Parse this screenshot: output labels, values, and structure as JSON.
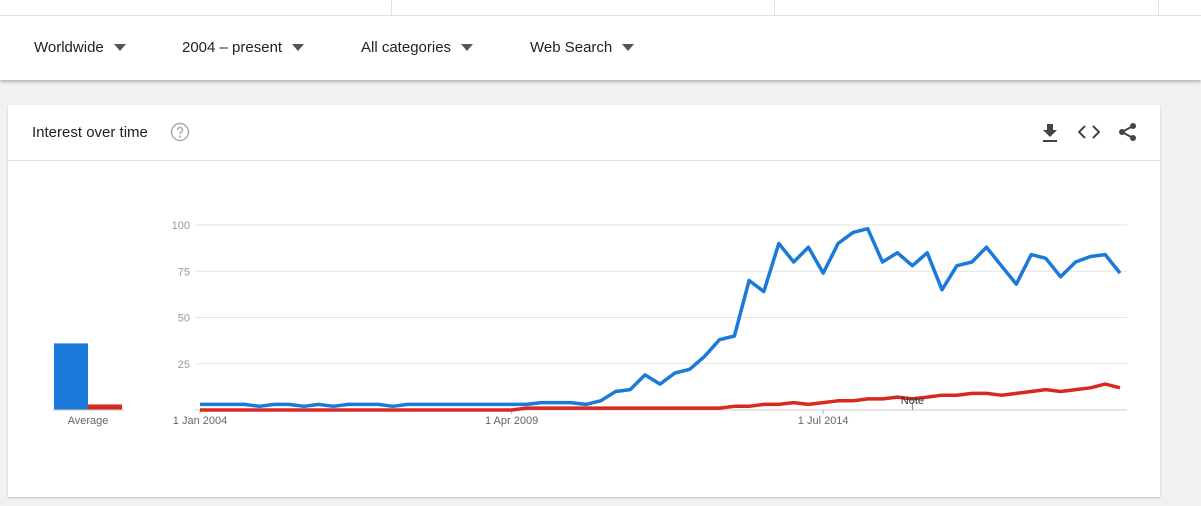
{
  "filters": [
    "Worldwide",
    "2004 – present",
    "All categories",
    "Web Search"
  ],
  "card": {
    "title": "Interest over time"
  },
  "chart_data": [
    {
      "type": "line",
      "x": [
        "2004-01-01",
        "2004-04-01",
        "2004-07-01",
        "2004-10-01",
        "2005-01-01",
        "2005-04-01",
        "2005-07-01",
        "2005-10-01",
        "2006-01-01",
        "2006-04-01",
        "2006-07-01",
        "2006-10-01",
        "2007-01-01",
        "2007-04-01",
        "2007-07-01",
        "2007-10-01",
        "2008-01-01",
        "2008-04-01",
        "2008-07-01",
        "2008-10-01",
        "2009-01-01",
        "2009-04-01",
        "2009-07-01",
        "2009-10-01",
        "2010-01-01",
        "2010-04-01",
        "2010-07-01",
        "2010-10-01",
        "2011-01-01",
        "2011-04-01",
        "2011-07-01",
        "2011-10-01",
        "2012-01-01",
        "2012-04-01",
        "2012-07-01",
        "2012-10-01",
        "2013-01-01",
        "2013-04-01",
        "2013-07-01",
        "2013-10-01",
        "2014-01-01",
        "2014-04-01",
        "2014-07-01",
        "2014-10-01",
        "2015-01-01",
        "2015-04-01",
        "2015-07-01",
        "2015-10-01",
        "2016-01-01",
        "2016-04-01",
        "2016-07-01",
        "2016-10-01",
        "2017-01-01",
        "2017-04-01",
        "2017-07-01",
        "2017-10-01",
        "2018-01-01",
        "2018-04-01",
        "2018-07-01",
        "2018-10-01",
        "2019-01-01",
        "2019-04-01",
        "2019-07-01"
      ],
      "series": [
        {
          "color": "#1a7ad9",
          "values": [
            3,
            3,
            3,
            3,
            2,
            3,
            3,
            2,
            3,
            2,
            3,
            3,
            3,
            2,
            3,
            3,
            3,
            3,
            3,
            3,
            3,
            3,
            3,
            4,
            4,
            4,
            3,
            5,
            10,
            11,
            19,
            14,
            20,
            22,
            29,
            38,
            40,
            70,
            64,
            90,
            80,
            88,
            74,
            90,
            96,
            98,
            80,
            85,
            78,
            85,
            65,
            78,
            80,
            88,
            78,
            68,
            84,
            82,
            72,
            80,
            83,
            84,
            74
          ]
        },
        {
          "color": "#d62a1e",
          "values": [
            0,
            0,
            0,
            0,
            0,
            0,
            0,
            0,
            0,
            0,
            0,
            0,
            0,
            0,
            0,
            0,
            0,
            0,
            0,
            0,
            0,
            0,
            1,
            1,
            1,
            1,
            1,
            1,
            1,
            1,
            1,
            1,
            1,
            1,
            1,
            1,
            2,
            2,
            3,
            3,
            4,
            3,
            4,
            5,
            5,
            6,
            6,
            7,
            6,
            7,
            8,
            8,
            9,
            9,
            8,
            9,
            10,
            11,
            10,
            11,
            12,
            14,
            12
          ]
        }
      ],
      "xlim": [
        "2004-01-01",
        "2019-08-01"
      ],
      "xticks": [
        {
          "value": "2004-01-01",
          "label": "1 Jan 2004"
        },
        {
          "value": "2009-04-01",
          "label": "1 Apr 2009"
        },
        {
          "value": "2014-07-01",
          "label": "1 Jul 2014"
        }
      ],
      "ylim": [
        0,
        100
      ],
      "yticks": [
        25,
        50,
        75,
        100
      ],
      "grid": true,
      "annotations": [
        {
          "text": "Note",
          "x": "2016-01-01"
        }
      ]
    },
    {
      "type": "bar",
      "categories": [
        "Average"
      ],
      "series": [
        {
          "color": "#1a7ad9",
          "values": [
            36
          ]
        },
        {
          "color": "#d62a1e",
          "values": [
            3
          ]
        }
      ],
      "ylim": [
        0,
        100
      ]
    }
  ]
}
